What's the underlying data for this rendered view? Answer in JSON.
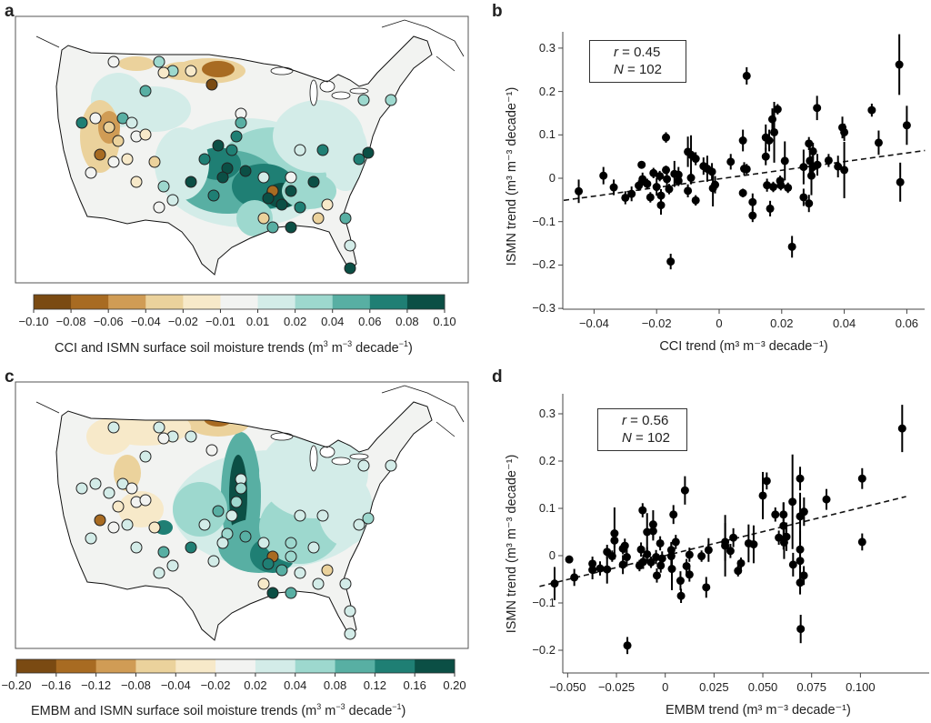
{
  "panels": {
    "a": {
      "letter": "a"
    },
    "b": {
      "letter": "b"
    },
    "c": {
      "letter": "c"
    },
    "d": {
      "letter": "d"
    }
  },
  "colorbars": {
    "a": {
      "ticks": [
        "−0.10",
        "−0.08",
        "−0.06",
        "−0.04",
        "−0.02",
        "−0.01",
        "0.01",
        "0.02",
        "0.04",
        "0.06",
        "0.08",
        "0.10"
      ],
      "label_main": "CCI and ISMN surface soil moisture trends (m",
      "label_sup1": "3",
      "label_mid": " m",
      "label_sup2": "−3",
      "label_dec": " decade",
      "label_sup3": "−1",
      "label_end": ")"
    },
    "c": {
      "ticks": [
        "−0.20",
        "−0.16",
        "−0.12",
        "−0.08",
        "−0.04",
        "−0.02",
        "0.02",
        "0.04",
        "0.08",
        "0.12",
        "0.16",
        "0.20"
      ],
      "label_main": "EMBM and ISMN surface soil moisture trends (m",
      "label_sup1": "3",
      "label_mid": " m",
      "label_sup2": "−3",
      "label_dec": " decade",
      "label_sup3": "−1",
      "label_end": ")"
    },
    "colors": [
      "#7a4a12",
      "#a86b22",
      "#d09c55",
      "#ebd29c",
      "#f7e9c9",
      "#f2f3f1",
      "#d3ece8",
      "#9dd8ce",
      "#58afa3",
      "#1f7f74",
      "#0b4f45"
    ]
  },
  "chart_data": [
    {
      "panel": "b",
      "type": "scatter",
      "xlabel": "CCI trend (m³ m⁻³ decade⁻¹)",
      "ylabel": "ISMN trend (m³ m⁻³ decade⁻¹)",
      "xlim": [
        -0.05,
        0.066
      ],
      "ylim": [
        -0.3,
        0.33
      ],
      "xticks": [
        "−0.04",
        "−0.02",
        "0",
        "0.02",
        "0.04",
        "0.06"
      ],
      "xtick_values": [
        -0.04,
        -0.02,
        0,
        0.02,
        0.04,
        0.06
      ],
      "yticks": [
        "0.3",
        "0.2",
        "0.1",
        "0",
        "−0.1",
        "−0.2",
        "−0.3"
      ],
      "ytick_values": [
        0.3,
        0.2,
        0.1,
        0,
        -0.1,
        -0.2,
        -0.3
      ],
      "stats": {
        "r_label": "r",
        "r_value": " = 0.45",
        "n_label": "N",
        "n_value": " = 102"
      },
      "trendline": [
        [
          -0.0497,
          -0.051
        ],
        [
          0.0658,
          0.064
        ]
      ],
      "points_x_y_err": [
        [
          -0.0449,
          -0.03,
          0.027
        ],
        [
          -0.037,
          0.006,
          0.02
        ],
        [
          -0.0337,
          -0.021,
          0.018
        ],
        [
          -0.03,
          -0.045,
          0.015
        ],
        [
          -0.028,
          -0.036,
          0.017
        ],
        [
          -0.0257,
          -0.017,
          0.012
        ],
        [
          -0.0248,
          0.031,
          0.008
        ],
        [
          -0.0245,
          -0.002,
          0.015
        ],
        [
          -0.023,
          -0.013,
          0.012
        ],
        [
          -0.022,
          -0.044,
          0.012
        ],
        [
          -0.021,
          0.012,
          0.012
        ],
        [
          -0.02,
          -0.02,
          0.02
        ],
        [
          -0.019,
          0.005,
          0.012
        ],
        [
          -0.0186,
          -0.04,
          0.015
        ],
        [
          -0.0186,
          -0.062,
          0.022
        ],
        [
          -0.017,
          0.094,
          0.012
        ],
        [
          -0.017,
          0.019,
          0.01
        ],
        [
          -0.0167,
          -0.002,
          0.015
        ],
        [
          -0.016,
          -0.025,
          0.012
        ],
        [
          -0.0155,
          -0.192,
          0.018
        ],
        [
          -0.0143,
          0.01,
          0.03
        ],
        [
          -0.013,
          0.008,
          0.018
        ],
        [
          -0.013,
          -0.006,
          0.012
        ],
        [
          -0.01,
          0.061,
          0.035
        ],
        [
          -0.01,
          -0.029,
          0.015
        ],
        [
          -0.009,
          0.054,
          0.045
        ],
        [
          -0.009,
          0.001,
          0.015
        ],
        [
          -0.0075,
          0.045,
          0.015
        ],
        [
          -0.0075,
          -0.051,
          0.012
        ],
        [
          -0.005,
          0.028,
          0.02
        ],
        [
          -0.0038,
          0.022,
          0.03
        ],
        [
          -0.0023,
          0.015,
          0.02
        ],
        [
          -0.002,
          -0.023,
          0.042
        ],
        [
          -0.0013,
          -0.015,
          0.02
        ],
        [
          0.0037,
          0.038,
          0.018
        ],
        [
          0.0076,
          0.087,
          0.025
        ],
        [
          0.0076,
          -0.034,
          0.01
        ],
        [
          0.008,
          0.022,
          0.015
        ],
        [
          0.0088,
          0.236,
          0.02
        ],
        [
          0.0088,
          0.021,
          0.012
        ],
        [
          0.0107,
          -0.055,
          0.02
        ],
        [
          0.0107,
          -0.086,
          0.015
        ],
        [
          0.0149,
          0.094,
          0.03
        ],
        [
          0.0149,
          0.05,
          0.02
        ],
        [
          0.0153,
          -0.016,
          0.015
        ],
        [
          0.016,
          0.087,
          0.025
        ],
        [
          0.0163,
          -0.07,
          0.018
        ],
        [
          0.017,
          0.136,
          0.025
        ],
        [
          0.0173,
          -0.02,
          0.012
        ],
        [
          0.0176,
          0.106,
          0.07
        ],
        [
          0.0187,
          0.159,
          0.012
        ],
        [
          0.0195,
          -0.006,
          0.012
        ],
        [
          0.0197,
          -0.016,
          0.012
        ],
        [
          0.021,
          0.04,
          0.045
        ],
        [
          0.022,
          -0.022,
          0.012
        ],
        [
          0.0233,
          -0.158,
          0.025
        ],
        [
          0.027,
          0.026,
          0.04
        ],
        [
          0.027,
          -0.044,
          0.02
        ],
        [
          0.0287,
          0.08,
          0.015
        ],
        [
          0.0287,
          -0.058,
          0.02
        ],
        [
          0.029,
          0.04,
          0.04
        ],
        [
          0.0295,
          0.006,
          0.045
        ],
        [
          0.03,
          0.062,
          0.02
        ],
        [
          0.03,
          0.026,
          0.025
        ],
        [
          0.0313,
          0.162,
          0.028
        ],
        [
          0.0314,
          0.031,
          0.025
        ],
        [
          0.035,
          0.041,
          0.015
        ],
        [
          0.038,
          0.027,
          0.025
        ],
        [
          0.0394,
          0.117,
          0.025
        ],
        [
          0.04,
          0.106,
          0.02
        ],
        [
          0.04,
          0.019,
          0.065
        ],
        [
          0.0488,
          0.157,
          0.015
        ],
        [
          0.051,
          0.082,
          0.028
        ],
        [
          0.0576,
          0.262,
          0.07
        ],
        [
          0.0579,
          -0.009,
          0.045
        ],
        [
          0.06,
          0.122,
          0.045
        ]
      ]
    },
    {
      "panel": "d",
      "type": "scatter",
      "xlabel": "EMBM trend (m³ m⁻³ decade⁻¹)",
      "ylabel": "ISMN trend (m³ m⁻³ decade⁻¹)",
      "xlim": [
        -0.0645,
        0.124
      ],
      "ylim": [
        -0.24,
        0.34
      ],
      "xticks": [
        "−0.050",
        "−0.025",
        "0",
        "0.025",
        "0.050",
        "0.075",
        "0.100"
      ],
      "xtick_values": [
        -0.05,
        -0.025,
        0,
        0.025,
        0.05,
        0.075,
        0.1
      ],
      "yticks": [
        "0.3",
        "0.2",
        "0.1",
        "0",
        "−0.1",
        "−0.2"
      ],
      "ytick_values": [
        0.3,
        0.2,
        0.1,
        0,
        -0.1,
        -0.2
      ],
      "stats": {
        "r_label": "r",
        "r_value": " = 0.56",
        "n_label": "N",
        "n_value": " = 102"
      },
      "trendline": [
        [
          -0.0644,
          -0.065
        ],
        [
          0.1234,
          0.125
        ]
      ],
      "points_x_y_err": [
        [
          -0.0567,
          -0.059,
          0.035
        ],
        [
          -0.0492,
          -0.008,
          0.005
        ],
        [
          -0.0466,
          -0.046,
          0.018
        ],
        [
          -0.0373,
          -0.017,
          0.015
        ],
        [
          -0.0373,
          -0.03,
          0.02
        ],
        [
          -0.0334,
          -0.027,
          0.015
        ],
        [
          -0.0298,
          0.008,
          0.015
        ],
        [
          -0.0298,
          -0.029,
          0.03
        ],
        [
          -0.0272,
          -0.001,
          0.012
        ],
        [
          -0.026,
          0.047,
          0.055
        ],
        [
          -0.026,
          0.032,
          0.015
        ],
        [
          -0.0217,
          0.015,
          0.012
        ],
        [
          -0.0217,
          -0.019,
          0.02
        ],
        [
          -0.0207,
          0.021,
          0.015
        ],
        [
          -0.0197,
          -0.003,
          0.02
        ],
        [
          -0.0194,
          -0.19,
          0.018
        ],
        [
          -0.0132,
          -0.021,
          0.012
        ],
        [
          -0.0124,
          0.013,
          0.015
        ],
        [
          -0.0116,
          0.096,
          0.015
        ],
        [
          -0.0113,
          -0.013,
          0.015
        ],
        [
          -0.0093,
          0.05,
          0.04
        ],
        [
          -0.0093,
          0.003,
          0.015
        ],
        [
          -0.0073,
          -0.014,
          0.012
        ],
        [
          -0.0062,
          0.066,
          0.03
        ],
        [
          -0.0062,
          0.052,
          0.02
        ],
        [
          -0.0047,
          -0.003,
          0.015
        ],
        [
          -0.0043,
          -0.042,
          0.015
        ],
        [
          -0.0026,
          0.026,
          0.015
        ],
        [
          -0.0023,
          -0.021,
          0.015
        ],
        [
          -0.0016,
          -0.006,
          0.015
        ],
        [
          0.0031,
          0.012,
          0.015
        ],
        [
          0.0031,
          -0.001,
          0.03
        ],
        [
          0.0034,
          -0.028,
          0.045
        ],
        [
          0.0042,
          0.087,
          0.02
        ],
        [
          0.0054,
          0.029,
          0.015
        ],
        [
          0.0078,
          -0.053,
          0.02
        ],
        [
          0.0081,
          -0.085,
          0.015
        ],
        [
          0.0101,
          0.138,
          0.03
        ],
        [
          0.0109,
          -0.022,
          0.015
        ],
        [
          0.0124,
          0.002,
          0.015
        ],
        [
          0.0124,
          -0.04,
          0.015
        ],
        [
          0.0186,
          -0.001,
          0.012
        ],
        [
          0.021,
          -0.067,
          0.022
        ],
        [
          0.0222,
          0.012,
          0.025
        ],
        [
          0.0307,
          0.029,
          0.04
        ],
        [
          0.0307,
          0.021,
          0.065
        ],
        [
          0.0334,
          0.01,
          0.015
        ],
        [
          0.0349,
          0.038,
          0.02
        ],
        [
          0.0373,
          -0.032,
          0.012
        ],
        [
          0.0388,
          -0.016,
          0.012
        ],
        [
          0.0427,
          0.026,
          0.04
        ],
        [
          0.0453,
          0.024,
          0.04
        ],
        [
          0.05,
          0.127,
          0.05
        ],
        [
          0.052,
          0.158,
          0.018
        ],
        [
          0.0564,
          0.087,
          0.015
        ],
        [
          0.0582,
          0.038,
          0.015
        ],
        [
          0.0606,
          0.087,
          0.025
        ],
        [
          0.0606,
          0.063,
          0.05
        ],
        [
          0.0609,
          0.028,
          0.035
        ],
        [
          0.0621,
          0.04,
          0.03
        ],
        [
          0.0652,
          0.114,
          0.1
        ],
        [
          0.0655,
          -0.019,
          0.025
        ],
        [
          0.0691,
          0.163,
          0.025
        ],
        [
          0.0691,
          0.083,
          0.05
        ],
        [
          0.0691,
          0.013,
          0.04
        ],
        [
          0.0691,
          -0.011,
          0.04
        ],
        [
          0.0691,
          -0.057,
          0.025
        ],
        [
          0.0694,
          -0.155,
          0.03
        ],
        [
          0.071,
          -0.042,
          0.02
        ],
        [
          0.0711,
          0.093,
          0.03
        ],
        [
          0.0826,
          0.119,
          0.022
        ],
        [
          0.1009,
          0.163,
          0.022
        ],
        [
          0.1009,
          0.029,
          0.018
        ],
        [
          0.1214,
          0.269,
          0.05
        ]
      ]
    }
  ]
}
